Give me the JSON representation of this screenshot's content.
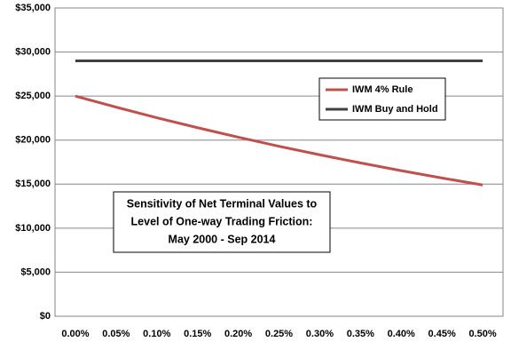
{
  "chart_data": {
    "type": "line",
    "title": [
      "Sensitivity of Net Terminal Values to",
      "Level of One-way Trading Friction:",
      "May 2000 - Sep 2014"
    ],
    "categories": [
      "0.00%",
      "0.05%",
      "0.10%",
      "0.15%",
      "0.20%",
      "0.25%",
      "0.30%",
      "0.35%",
      "0.40%",
      "0.45%",
      "0.50%"
    ],
    "series": [
      {
        "name": "IWM 4% Rule",
        "color": "#c0504d",
        "values": [
          25000,
          23740,
          22540,
          21410,
          20330,
          19300,
          18330,
          17410,
          16530,
          15700,
          14900
        ]
      },
      {
        "name": "IWM Buy and Hold",
        "color": "#404040",
        "values": [
          29000,
          29000,
          29000,
          29000,
          29000,
          29000,
          29000,
          29000,
          29000,
          29000,
          29000
        ]
      }
    ],
    "ylim": [
      0,
      35000
    ],
    "yticks": [
      {
        "value": 0,
        "label": "$0"
      },
      {
        "value": 5000,
        "label": "$5,000"
      },
      {
        "value": 10000,
        "label": "$10,000"
      },
      {
        "value": 15000,
        "label": "$15,000"
      },
      {
        "value": 20000,
        "label": "$20,000"
      },
      {
        "value": 25000,
        "label": "$25,000"
      },
      {
        "value": 30000,
        "label": "$30,000"
      },
      {
        "value": 35000,
        "label": "$35,000"
      }
    ],
    "grid": true
  }
}
